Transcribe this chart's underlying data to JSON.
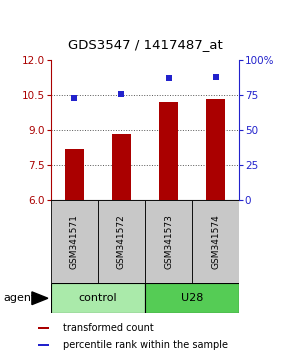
{
  "title": "GDS3547 / 1417487_at",
  "samples": [
    "GSM341571",
    "GSM341572",
    "GSM341573",
    "GSM341574"
  ],
  "bar_values": [
    8.2,
    8.85,
    10.2,
    10.35
  ],
  "scatter_values": [
    73,
    76,
    87,
    88
  ],
  "ylim_left": [
    6,
    12
  ],
  "ylim_right": [
    0,
    100
  ],
  "yticks_left": [
    6,
    7.5,
    9,
    10.5,
    12
  ],
  "yticks_right": [
    0,
    25,
    50,
    75,
    100
  ],
  "ytick_right_labels": [
    "0",
    "25",
    "50",
    "75",
    "100%"
  ],
  "bar_color": "#AA0000",
  "scatter_color": "#2222CC",
  "groups": [
    {
      "label": "control",
      "samples": [
        0,
        1
      ],
      "color": "#AAEAAA"
    },
    {
      "label": "U28",
      "samples": [
        2,
        3
      ],
      "color": "#55CC55"
    }
  ],
  "agent_label": "agent",
  "legend_bar_label": "transformed count",
  "legend_scatter_label": "percentile rank within the sample",
  "sample_box_color": "#C8C8C8",
  "dotted_line_color": "#555555",
  "background_color": "#FFFFFF",
  "bar_width": 0.4
}
